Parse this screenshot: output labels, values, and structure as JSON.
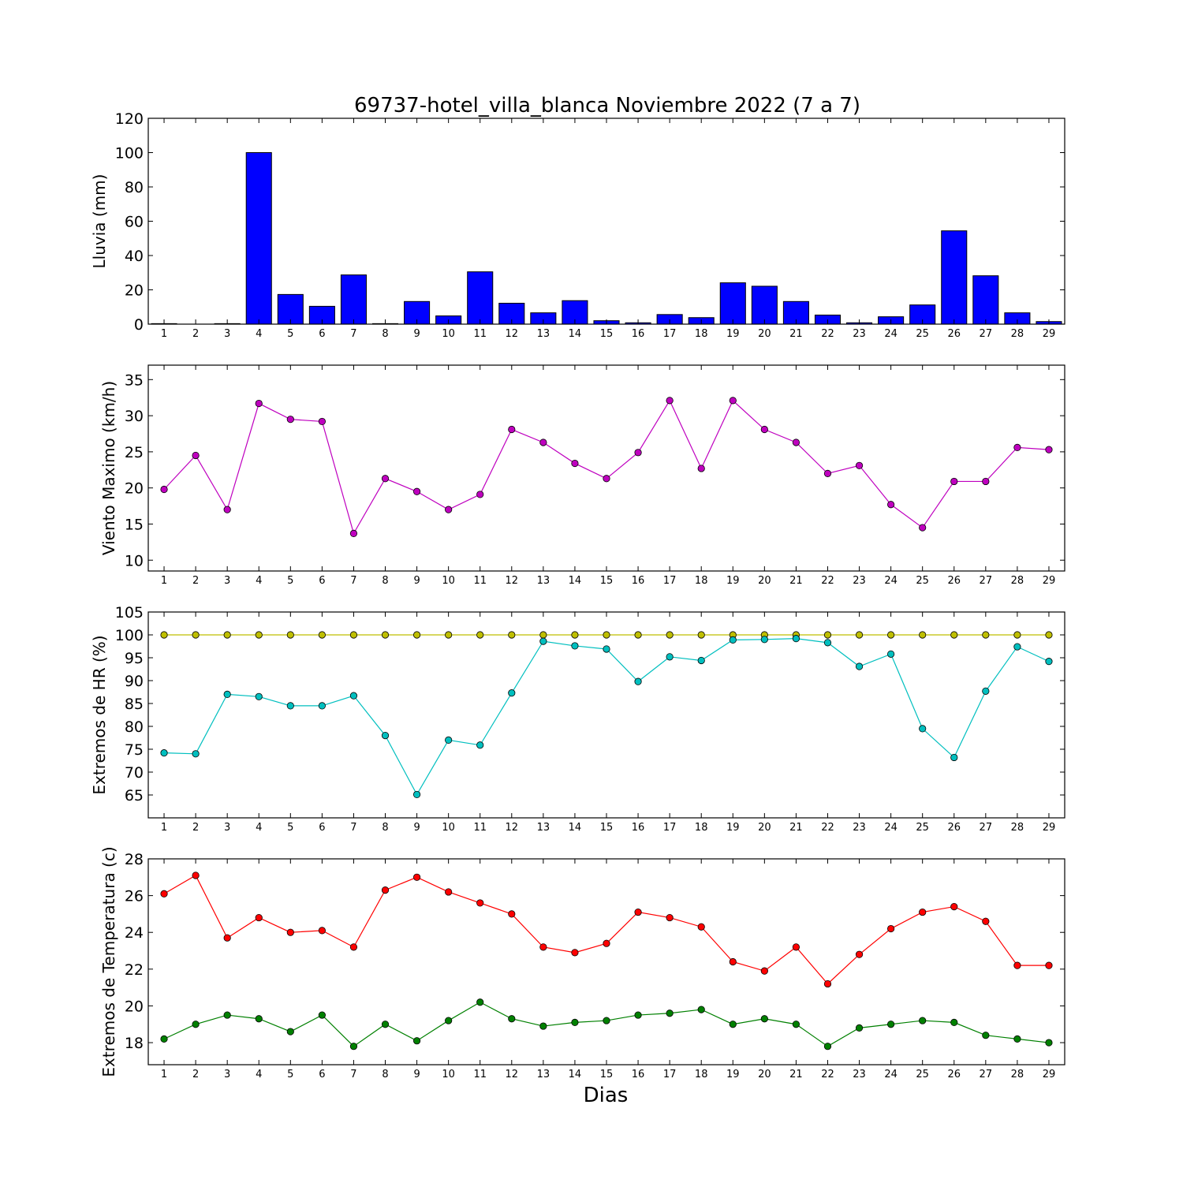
{
  "chart_data": [
    {
      "type": "bar",
      "title": "69737-hotel_villa_blanca Noviembre 2022  (7 a 7)",
      "ylabel": "Lluvia (mm)",
      "ylim": [
        0,
        120
      ],
      "yticks": [
        0,
        20,
        40,
        60,
        80,
        100,
        120
      ],
      "categories": [
        "1",
        "2",
        "3",
        "4",
        "5",
        "6",
        "7",
        "8",
        "9",
        "10",
        "11",
        "12",
        "13",
        "14",
        "15",
        "16",
        "17",
        "18",
        "19",
        "20",
        "21",
        "22",
        "23",
        "24",
        "25",
        "26",
        "27",
        "28",
        "29"
      ],
      "values": [
        0.3,
        0,
        0.3,
        100,
        17.3,
        10.4,
        28.7,
        0.3,
        13.2,
        4.8,
        30.5,
        12.2,
        6.6,
        13.7,
        2,
        0.8,
        5.6,
        3.8,
        24.1,
        22.1,
        13.2,
        5.3,
        0.8,
        4.3,
        11.2,
        54.4,
        28.2,
        6.6,
        1.5
      ],
      "color": "#0000ff"
    },
    {
      "type": "line",
      "ylabel": "Viento Maximo (km/h)",
      "ylim": [
        8.5,
        37
      ],
      "yticks": [
        10,
        15,
        20,
        25,
        30,
        35
      ],
      "x": [
        1,
        2,
        3,
        4,
        5,
        6,
        7,
        8,
        9,
        10,
        11,
        12,
        13,
        14,
        15,
        16,
        17,
        18,
        19,
        20,
        21,
        22,
        23,
        24,
        25,
        26,
        27,
        28,
        29
      ],
      "series": [
        {
          "values": [
            19.8,
            24.5,
            17,
            31.7,
            29.5,
            29.2,
            13.7,
            21.3,
            19.5,
            17,
            19.1,
            28.1,
            26.3,
            23.4,
            21.3,
            24.9,
            32.1,
            22.7,
            32.1,
            28.1,
            26.3,
            22,
            23.1,
            17.7,
            14.5,
            20.9,
            20.9,
            25.6,
            25.3
          ],
          "color": "#bf00bf"
        }
      ]
    },
    {
      "type": "line",
      "ylabel": "Extremos de HR (%)",
      "ylim": [
        60,
        105
      ],
      "yticks": [
        65,
        70,
        75,
        80,
        85,
        90,
        95,
        100,
        105
      ],
      "x": [
        1,
        2,
        3,
        4,
        5,
        6,
        7,
        8,
        9,
        10,
        11,
        12,
        13,
        14,
        15,
        16,
        17,
        18,
        19,
        20,
        21,
        22,
        23,
        24,
        25,
        26,
        27,
        28,
        29
      ],
      "series": [
        {
          "values": [
            100,
            100,
            100,
            100,
            100,
            100,
            100,
            100,
            100,
            100,
            100,
            100,
            100,
            100,
            100,
            100,
            100,
            100,
            100,
            100,
            100,
            100,
            100,
            100,
            100,
            100,
            100,
            100,
            100
          ],
          "color": "#bfbf00"
        },
        {
          "values": [
            74.2,
            74,
            87,
            86.5,
            84.5,
            84.5,
            86.7,
            78,
            65.1,
            77,
            75.9,
            87.3,
            98.6,
            97.6,
            96.9,
            89.8,
            95.2,
            94.4,
            98.9,
            99,
            99.2,
            98.3,
            93.1,
            95.8,
            79.5,
            73.2,
            87.7,
            97.4,
            94.2
          ],
          "color": "#00bfbf"
        }
      ]
    },
    {
      "type": "line",
      "ylabel": "Extremos de Temperatura (c)",
      "xlabel": "Dias",
      "ylim": [
        16.8,
        28
      ],
      "yticks": [
        18,
        20,
        22,
        24,
        26,
        28
      ],
      "x": [
        1,
        2,
        3,
        4,
        5,
        6,
        7,
        8,
        9,
        10,
        11,
        12,
        13,
        14,
        15,
        16,
        17,
        18,
        19,
        20,
        21,
        22,
        23,
        24,
        25,
        26,
        27,
        28,
        29
      ],
      "series": [
        {
          "values": [
            26.1,
            27.1,
            23.7,
            24.8,
            24,
            24.1,
            23.2,
            26.3,
            27,
            26.2,
            25.6,
            25,
            23.2,
            22.9,
            23.4,
            25.1,
            24.8,
            24.3,
            22.4,
            21.9,
            23.2,
            21.2,
            22.8,
            24.2,
            25.1,
            25.4,
            24.6,
            22.2,
            22.2
          ],
          "color": "#ff0000"
        },
        {
          "values": [
            18.2,
            19,
            19.5,
            19.3,
            18.6,
            19.5,
            17.8,
            19,
            18.1,
            19.2,
            20.2,
            19.3,
            18.9,
            19.1,
            19.2,
            19.5,
            19.6,
            19.8,
            19,
            19.3,
            19,
            17.8,
            18.8,
            19,
            19.2,
            19.1,
            18.4,
            18.2,
            18
          ],
          "color": "#008000"
        }
      ]
    }
  ]
}
